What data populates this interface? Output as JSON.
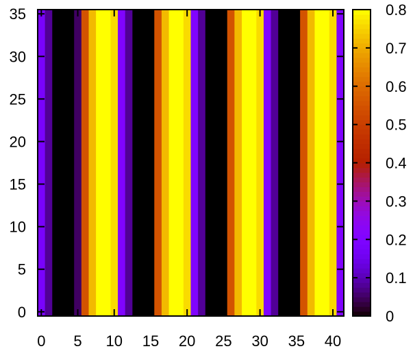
{
  "chart_data": {
    "type": "heatmap",
    "title": "",
    "xlabel": "",
    "ylabel": "",
    "xlim": [
      -0.5,
      41.5
    ],
    "ylim": [
      -0.5,
      35.5
    ],
    "x_ticks": [
      "0",
      "5",
      "10",
      "15",
      "20",
      "25",
      "30",
      "35",
      "40"
    ],
    "y_ticks": [
      "0",
      "5",
      "10",
      "15",
      "20",
      "25",
      "30",
      "35"
    ],
    "colorbar": {
      "range": [
        0,
        0.8
      ],
      "ticks": [
        "0",
        "0.1",
        "0.2",
        "0.3",
        "0.4",
        "0.5",
        "0.6",
        "0.7",
        "0.8"
      ],
      "palette": "gnuplot-pm3d-black-purple-red-yellow"
    },
    "grid": false,
    "pattern": "values vary only along x; constant along y",
    "column_values": [
      0.18,
      0.08,
      0.0,
      0.0,
      0.0,
      0.05,
      0.55,
      0.72,
      0.8,
      0.8,
      0.76,
      0.2,
      0.08,
      0.0,
      0.0,
      0.0,
      0.55,
      0.72,
      0.8,
      0.8,
      0.76,
      0.2,
      0.08,
      0.0,
      0.0,
      0.0,
      0.55,
      0.72,
      0.8,
      0.8,
      0.76,
      0.2,
      0.08,
      0.0,
      0.0,
      0.0,
      0.55,
      0.72,
      0.8,
      0.8,
      0.76,
      0.2
    ]
  }
}
